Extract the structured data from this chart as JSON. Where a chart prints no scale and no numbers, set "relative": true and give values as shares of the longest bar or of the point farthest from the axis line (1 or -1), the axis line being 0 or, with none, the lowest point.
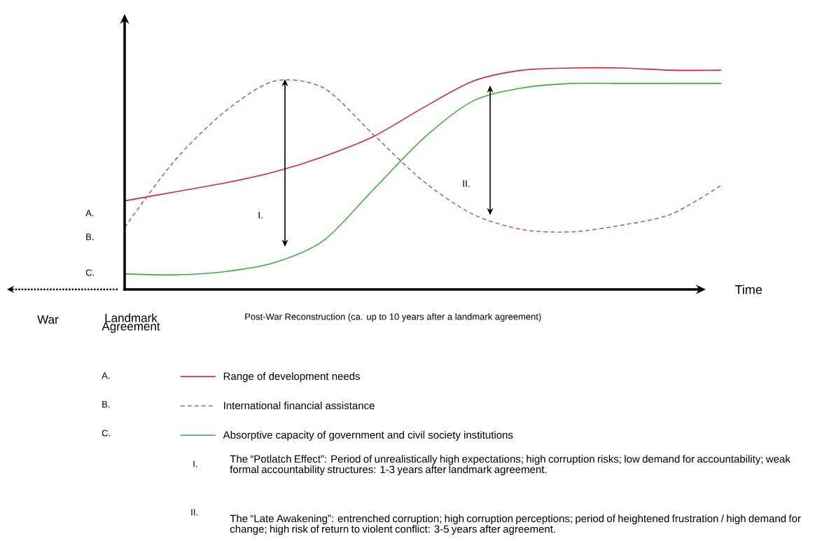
{
  "chart_data": {
    "type": "line",
    "relative": true,
    "xlabel": "Time",
    "legend": "bottom",
    "categories": [
      null,
      null,
      null,
      null,
      null,
      null,
      null,
      null,
      null,
      null,
      null,
      null,
      null
    ],
    "series": [
      {
        "name": "Range of development needs",
        "color": "#d7282f",
        "line_style": "solid",
        "values": [
          0.4,
          0.44,
          0.48,
          0.53,
          0.6,
          0.69,
          0.82,
          0.94,
          0.99,
          1.0,
          1.0,
          0.99,
          0.99
        ]
      },
      {
        "name": "International financial assistance",
        "color": "#a45cb0",
        "line_style": "dashed",
        "values": [
          0.28,
          0.58,
          0.8,
          0.94,
          0.91,
          0.7,
          0.49,
          0.34,
          0.27,
          0.26,
          0.29,
          0.34,
          0.47
        ]
      },
      {
        "name": "Absorptive capacity of government and civil society institutions",
        "color": "#3cad3c",
        "line_style": "solid",
        "values": [
          0.07,
          0.066,
          0.08,
          0.12,
          0.22,
          0.45,
          0.68,
          0.85,
          0.91,
          0.93,
          0.93,
          0.93,
          0.93
        ]
      }
    ],
    "annotations": [
      "A.",
      "B.",
      "C.",
      "I.",
      "II.",
      "War",
      "Landmark Agreement",
      "Post-War Reconstruction (ca. up to 10 years after a landmark agreement)",
      "The “Potlatch Effect”: Period of unrealistically high expectations; high corruption risks; low demand for accountability; weak formal accountability structures: 1-3 years after landmark agreement.",
      "The “Late Awakening”: entrenched corruption; high corruption perceptions; period of heightened frustration / high demand for change; high risk of return to violent conflict: 3-5 years after agreement."
    ]
  }
}
